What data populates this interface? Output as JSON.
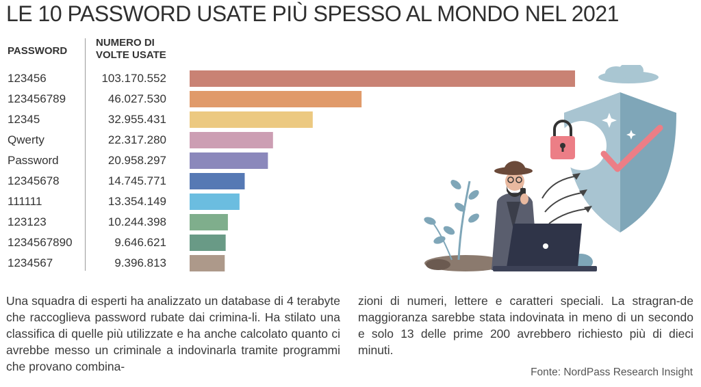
{
  "title": "LE 10 PASSWORD USATE PIÙ SPESSO AL MONDO NEL 2021",
  "headers": {
    "password": "PASSWORD",
    "count_line1": "NUMERO DI",
    "count_line2": "VOLTE USATE"
  },
  "rows": [
    {
      "password": "123456",
      "count": "103.170.552"
    },
    {
      "password": "123456789",
      "count": "46.027.530"
    },
    {
      "password": "12345",
      "count": "32.955.431"
    },
    {
      "password": "Qwerty",
      "count": "22.317.280"
    },
    {
      "password": "Password",
      "count": "20.958.297"
    },
    {
      "password": "12345678",
      "count": "14.745.771"
    },
    {
      "password": "111111",
      "count": "13.354.149"
    },
    {
      "password": "123123",
      "count": "10.244.398"
    },
    {
      "password": "1234567890",
      "count": "9.646.621"
    },
    {
      "password": "1234567",
      "count": "9.396.813"
    }
  ],
  "chart_data": {
    "type": "bar",
    "orientation": "horizontal",
    "categories": [
      "123456",
      "123456789",
      "12345",
      "Qwerty",
      "Password",
      "12345678",
      "111111",
      "123123",
      "1234567890",
      "1234567"
    ],
    "values": [
      103170552,
      46027530,
      32955431,
      22317280,
      20958297,
      14745771,
      13354149,
      10244398,
      9646621,
      9396813
    ],
    "colors": [
      "#c98274",
      "#e09a6a",
      "#ecc981",
      "#cc9eb3",
      "#8b88bb",
      "#5679b4",
      "#6bbde0",
      "#7fae8c",
      "#699a86",
      "#ad998a"
    ],
    "grid": false,
    "legend": "none"
  },
  "text": {
    "col1": "Una squadra di esperti ha analizzato un database di 4 terabyte che raccoglieva password rubate dai crimina-li. Ha stilato una classifica di quelle più utilizzate e ha anche calcolato quanto ci avrebbe messo un criminale a indovinarla tramite programmi che provano combina-",
    "col2": "zioni di numeri, lettere e caratteri speciali. La stragran-de maggioranza sarebbe stata indovinata in meno di un secondo e solo 13 delle prime 200 avrebbero richiesto più di dieci minuti."
  },
  "source": "Fonte: NordPass Research Insight",
  "illustration": {
    "icons": [
      "hacker-icon",
      "laptop-icon",
      "shield-icon",
      "padlock-icon",
      "cloud-icon",
      "plant-icon"
    ]
  }
}
